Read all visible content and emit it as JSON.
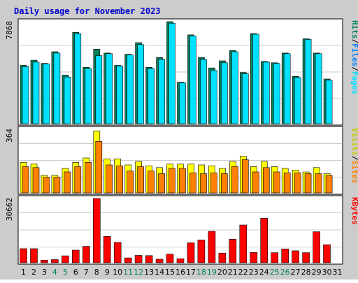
{
  "chart_data": {
    "type": "bar",
    "title": "Daily usage for November 2023",
    "colors": {
      "background": "#cccccc",
      "plot": "#ffffff",
      "title": "#0000cc",
      "weekend": "#00805c",
      "weekday": "#000000",
      "hits": "#00805c",
      "files": "#00e0ff",
      "pages": "#00e0ff",
      "visits": "#ffff00",
      "sites": "#ff8000",
      "kbytes": "#ff0000",
      "separator": "#000000",
      "gridline": "#999999"
    },
    "categories": [
      "1",
      "2",
      "3",
      "4",
      "5",
      "6",
      "7",
      "8",
      "9",
      "10",
      "11",
      "12",
      "13",
      "14",
      "15",
      "16",
      "17",
      "18",
      "19",
      "20",
      "21",
      "22",
      "23",
      "24",
      "25",
      "26",
      "27",
      "28",
      "29",
      "30",
      "31"
    ],
    "weekend_days": [
      "4",
      "5",
      "11",
      "12",
      "18",
      "19",
      "25",
      "26"
    ],
    "panels": [
      {
        "id": "hits",
        "ymax_label": "7868",
        "ylim": [
          0,
          7868
        ],
        "legend": [
          {
            "text": "Hits",
            "color": "#00805c"
          },
          {
            "text": "/",
            "color": "#000000"
          },
          {
            "text": "Files",
            "color": "#0080ff"
          },
          {
            "text": "/",
            "color": "#000000"
          },
          {
            "text": "Pages",
            "color": "#00e0ff"
          }
        ],
        "series": [
          {
            "name": "Hits",
            "values": [
              4500,
              4900,
              4650,
              5550,
              3750,
              7050,
              4350,
              5750,
              5450,
              4500,
              5350,
              6250,
              4350,
              5100,
              7868,
              3200,
              6850,
              5100,
              4300,
              4850,
              5650,
              3950,
              6950,
              4800,
              4700,
              5450,
              3650,
              6550,
              5450,
              3450,
              0
            ]
          },
          {
            "name": "Files",
            "values": [
              4400,
              4750,
              4600,
              5450,
              3600,
              6950,
              4250,
              5250,
              5400,
              4450,
              5300,
              6100,
              4250,
              4950,
              7750,
              3150,
              6750,
              4950,
              4100,
              4700,
              5550,
              3850,
              6900,
              4750,
              4650,
              5400,
              3550,
              6500,
              5400,
              3350,
              0
            ]
          }
        ]
      },
      {
        "id": "visits",
        "ymax_label": "364",
        "ylim": [
          0,
          364
        ],
        "legend": [
          {
            "text": "Visits",
            "color": "#c8c800"
          },
          {
            "text": "/",
            "color": "#000000"
          },
          {
            "text": "Sites",
            "color": "#ff8000"
          }
        ],
        "series": [
          {
            "name": "Visits",
            "values": [
              175,
              165,
              100,
              100,
              140,
              175,
              200,
              355,
              195,
              195,
              160,
              180,
              155,
              145,
              165,
              165,
              165,
              160,
              155,
              140,
              180,
              210,
              150,
              180,
              150,
              140,
              130,
              120,
              145,
              110,
              0
            ]
          },
          {
            "name": "Sites",
            "values": [
              150,
              145,
              90,
              90,
              120,
              150,
              175,
              295,
              160,
              155,
              125,
              150,
              125,
              110,
              140,
              140,
              115,
              110,
              115,
              110,
              150,
              190,
              120,
              145,
              120,
              115,
              115,
              110,
              110,
              100,
              0
            ]
          }
        ]
      },
      {
        "id": "kbytes",
        "ymax_label": "30662",
        "ylim": [
          0,
          30662
        ],
        "legend": [
          {
            "text": "KBytes",
            "color": "#ff0000"
          }
        ],
        "series": [
          {
            "name": "KBytes",
            "values": [
              6700,
              6700,
              1200,
              1500,
              3300,
              6000,
              7800,
              30662,
              12600,
              9700,
              2300,
              3500,
              3400,
              1700,
              4100,
              1900,
              9500,
              10900,
              15000,
              4600,
              11200,
              18000,
              4900,
              21200,
              4800,
              6600,
              5700,
              4800,
              14800,
              8600,
              0
            ]
          }
        ]
      }
    ]
  }
}
